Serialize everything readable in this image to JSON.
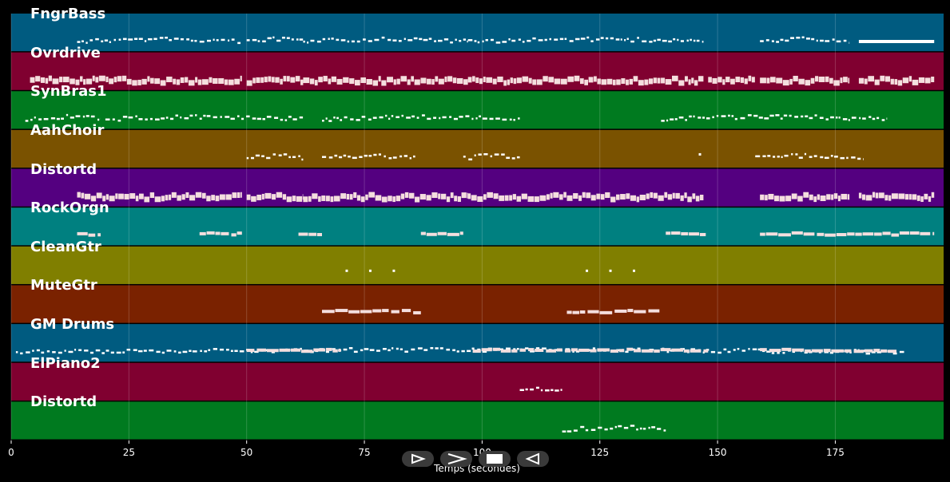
{
  "tracks": [
    {
      "name": "FngrBass",
      "color": "#005b80"
    },
    {
      "name": "Ovrdrive",
      "color": "#800030"
    },
    {
      "name": "SynBras1",
      "color": "#007a1f"
    },
    {
      "name": "AahChoir",
      "color": "#7a5200"
    },
    {
      "name": "Distortd",
      "color": "#540080"
    },
    {
      "name": "RockOrgn",
      "color": "#008080"
    },
    {
      "name": "CleanGtr",
      "color": "#807f00"
    },
    {
      "name": "MuteGtr",
      "color": "#7a2200"
    },
    {
      "name": "GM Drums",
      "color": "#005b80"
    },
    {
      "name": "ElPiano2",
      "color": "#800030"
    },
    {
      "name": "Distortd",
      "color": "#007a1f"
    }
  ],
  "axis": {
    "ticks": [
      "0",
      "25",
      "50",
      "75",
      "100",
      "125",
      "150",
      "175"
    ],
    "tick_values": [
      0,
      25,
      50,
      75,
      100,
      125,
      150,
      175
    ],
    "range": [
      0,
      198
    ],
    "xlabel": "Temps (secondes)"
  },
  "controls": {
    "play_icon": "play-outline-icon",
    "forward_icon": "fast-forward-icon",
    "stop_icon": "stop-icon",
    "rewind_icon": "rewind-icon"
  },
  "note_segments": [
    [
      [
        14,
        49,
        "line"
      ],
      [
        50,
        62,
        "line"
      ],
      [
        62,
        97,
        "line"
      ],
      [
        97,
        147,
        "line"
      ],
      [
        159,
        178,
        "line"
      ],
      [
        180,
        196,
        "solid"
      ]
    ],
    [
      [
        4,
        49,
        "block"
      ],
      [
        50,
        62,
        "block"
      ],
      [
        62,
        97,
        "block"
      ],
      [
        97,
        147,
        "block"
      ],
      [
        148,
        158,
        "block"
      ],
      [
        159,
        178,
        "block"
      ],
      [
        180,
        196,
        "block"
      ]
    ],
    [
      [
        3,
        19,
        "line"
      ],
      [
        20,
        62,
        "line"
      ],
      [
        66,
        108,
        "line"
      ],
      [
        138,
        186,
        "line"
      ]
    ],
    [
      [
        50,
        62,
        "line"
      ],
      [
        66,
        86,
        "line"
      ],
      [
        96,
        108,
        "line"
      ],
      [
        146,
        147,
        "dot"
      ],
      [
        158,
        181,
        "line"
      ]
    ],
    [
      [
        14,
        49,
        "block"
      ],
      [
        50,
        62,
        "block"
      ],
      [
        62,
        97,
        "block"
      ],
      [
        97,
        147,
        "block"
      ],
      [
        159,
        178,
        "block"
      ],
      [
        180,
        196,
        "block"
      ]
    ],
    [
      [
        14,
        19,
        "bar"
      ],
      [
        40,
        49,
        "bar"
      ],
      [
        61,
        66,
        "bar"
      ],
      [
        87,
        96,
        "bar"
      ],
      [
        139,
        148,
        "bar"
      ],
      [
        159,
        196,
        "bar"
      ]
    ],
    [
      [
        71,
        72,
        "dot"
      ],
      [
        76,
        77,
        "dot"
      ],
      [
        81,
        82,
        "dot"
      ],
      [
        122,
        123,
        "dot"
      ],
      [
        127,
        128,
        "dot"
      ],
      [
        132,
        133,
        "dot"
      ]
    ],
    [
      [
        66,
        87,
        "bar"
      ],
      [
        118,
        138,
        "bar"
      ]
    ],
    [
      [
        1,
        190,
        "line"
      ],
      [
        50,
        70,
        "bar"
      ],
      [
        98,
        148,
        "bar"
      ],
      [
        159,
        188,
        "bar"
      ]
    ],
    [
      [
        108,
        117,
        "line"
      ]
    ],
    [
      [
        117,
        139,
        "line"
      ]
    ]
  ]
}
